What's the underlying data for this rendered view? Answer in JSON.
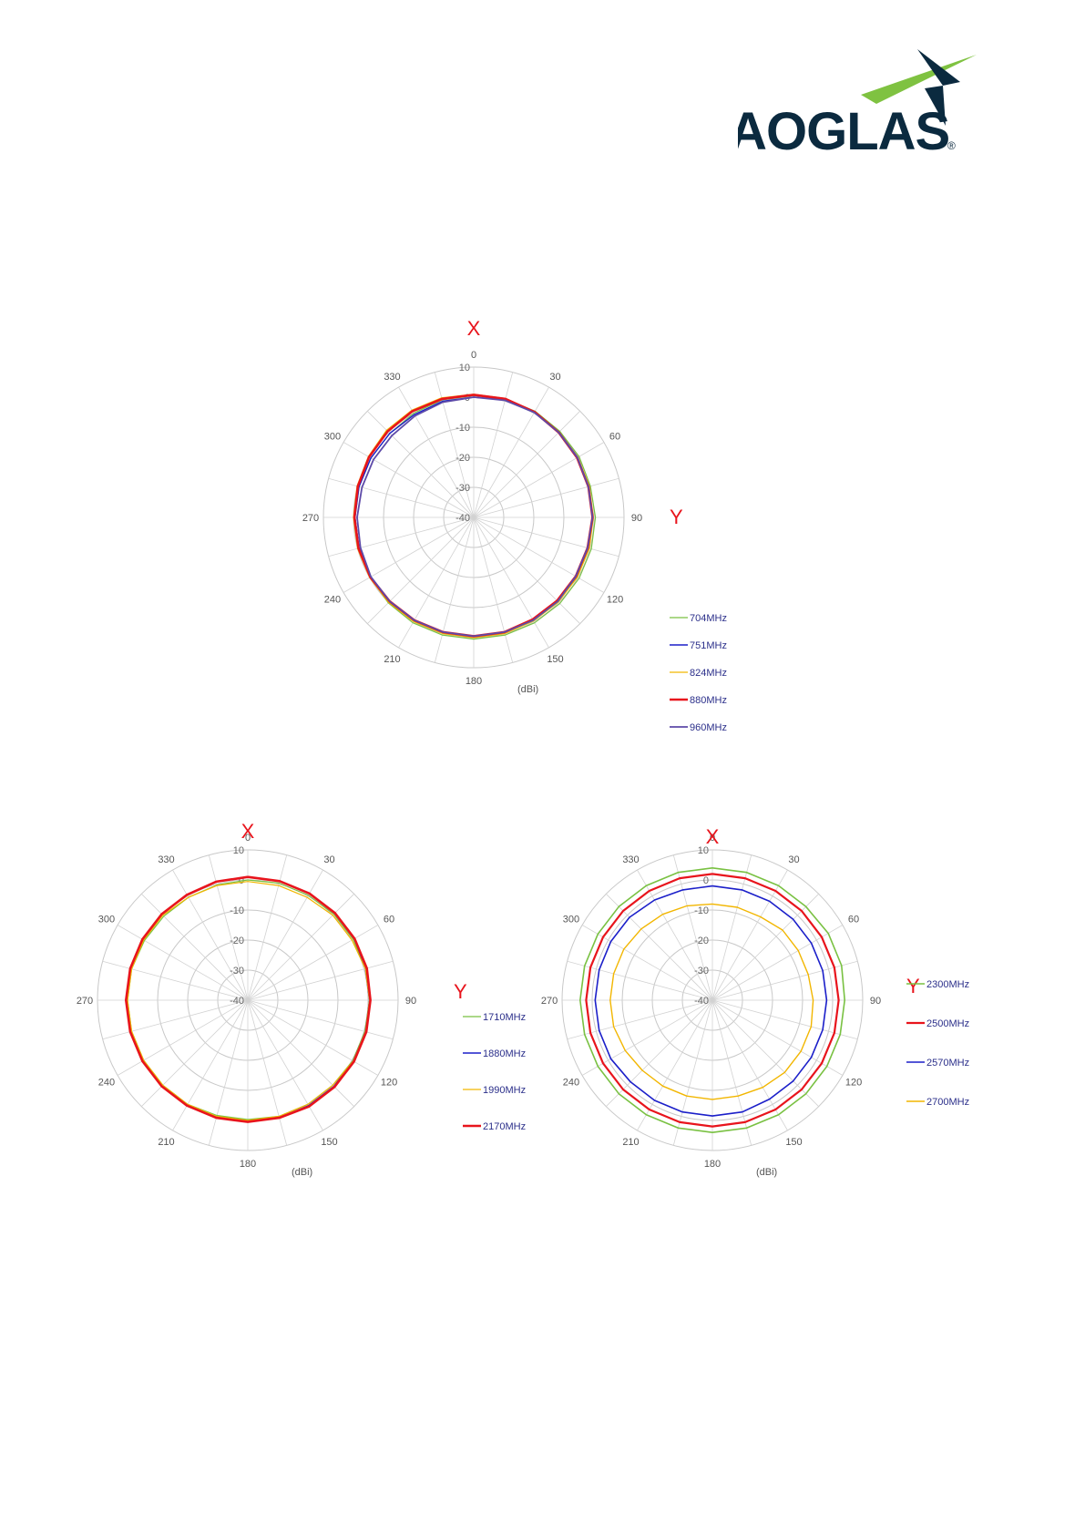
{
  "logo": {
    "text": "TAOGLAS",
    "reg_mark": "®",
    "colors": {
      "text": "#0b2a3f",
      "star_green": "#7fc241",
      "star_dark": "#0b2a3f"
    }
  },
  "chart_data": [
    {
      "type": "polar-line",
      "x_tag": "X",
      "y_tag": "Y",
      "unit": "(dBi)",
      "r_ticks": [
        10,
        0,
        -10,
        -20,
        -30,
        -40
      ],
      "r_min": -40,
      "r_max": 10,
      "angle_labels": [
        "0",
        "30",
        "60",
        "90",
        "120",
        "150",
        "180",
        "210",
        "240",
        "270",
        "300",
        "330"
      ],
      "series": [
        {
          "name": "704MHz",
          "color": "#79c142",
          "width": 1.2,
          "gain": [
            0.5,
            0.8,
            0.8,
            0.5,
            0.5,
            0.2,
            0.5,
            0.5,
            0.5,
            0.5,
            0.5,
            0.5,
            0.5,
            0.5,
            0.5,
            0.2,
            -0.2,
            -0.5,
            -0.5,
            -0.5,
            -0.5,
            -0.5,
            0.0,
            0.5
          ]
        },
        {
          "name": "751MHz",
          "color": "#1b1fc9",
          "width": 1.4,
          "gain": [
            0.0,
            0.5,
            0.5,
            0.0,
            0.0,
            -0.5,
            -0.5,
            -0.5,
            -0.5,
            -0.5,
            -0.5,
            -0.5,
            -0.5,
            -0.5,
            -0.5,
            -0.5,
            -0.5,
            -0.5,
            -0.5,
            -0.5,
            -0.5,
            -0.5,
            -0.5,
            0.0
          ]
        },
        {
          "name": "824MHz",
          "color": "#f2b600",
          "width": 1.2,
          "gain": [
            1.0,
            1.0,
            0.5,
            0.0,
            0.0,
            -0.2,
            -0.2,
            -0.2,
            -0.2,
            -0.2,
            -0.2,
            0.0,
            0.0,
            0.0,
            0.0,
            0.0,
            0.0,
            0.0,
            0.0,
            0.2,
            0.5,
            1.0,
            1.2,
            1.2
          ]
        },
        {
          "name": "880MHz",
          "color": "#e8141c",
          "width": 2.6,
          "gain": [
            0.8,
            0.8,
            0.5,
            0.0,
            -0.3,
            -0.5,
            -0.5,
            -0.8,
            -0.8,
            -0.8,
            -0.8,
            -0.5,
            -0.5,
            -0.5,
            -0.5,
            -0.5,
            -0.3,
            -0.3,
            -0.3,
            -0.1,
            0.2,
            0.5,
            0.8,
            0.8
          ]
        },
        {
          "name": "960MHz",
          "color": "#5d4aa8",
          "width": 1.8,
          "gain": [
            0.0,
            0.3,
            0.3,
            0.0,
            -0.2,
            -0.5,
            -0.5,
            -0.8,
            -0.8,
            -0.5,
            -0.5,
            -0.5,
            -0.5,
            -0.5,
            -0.5,
            -0.5,
            -0.5,
            -1.0,
            -1.2,
            -1.5,
            -1.5,
            -1.5,
            -1.0,
            -0.3
          ]
        }
      ]
    },
    {
      "type": "polar-line",
      "x_tag": "X",
      "y_tag": "Y",
      "unit": "(dBi)",
      "r_ticks": [
        10,
        0,
        -10,
        -20,
        -30,
        -40
      ],
      "r_min": -40,
      "r_max": 10,
      "angle_labels": [
        "0",
        "30",
        "60",
        "90",
        "120",
        "150",
        "180",
        "210",
        "240",
        "270",
        "300",
        "330"
      ],
      "series": [
        {
          "name": "1710MHz",
          "color": "#79c142",
          "width": 1.2,
          "gain": [
            0.0,
            0.3,
            0.3,
            0.5,
            0.5,
            0.5,
            0.5,
            0.3,
            0.3,
            0.0,
            0.0,
            0.0,
            -0.3,
            -0.3,
            0.0,
            0.0,
            0.0,
            0.0,
            0.0,
            0.0,
            -0.3,
            -0.5,
            -0.5,
            -0.3
          ]
        },
        {
          "name": "1880MHz",
          "color": "#1b1fc9",
          "width": 1.4,
          "gain": [
            1.0,
            1.0,
            1.0,
            1.0,
            1.0,
            0.5,
            0.5,
            0.5,
            0.5,
            0.5,
            0.5,
            0.5,
            0.5,
            0.5,
            0.5,
            0.5,
            0.5,
            0.5,
            0.5,
            0.5,
            0.5,
            0.5,
            0.5,
            0.8
          ]
        },
        {
          "name": "1990MHz",
          "color": "#f2b600",
          "width": 1.2,
          "gain": [
            -0.5,
            -0.5,
            -0.5,
            0.0,
            0.0,
            0.5,
            0.5,
            0.5,
            0.5,
            0.0,
            0.0,
            0.0,
            0.0,
            0.0,
            0.0,
            0.0,
            0.0,
            0.0,
            0.0,
            0.0,
            0.0,
            0.0,
            -0.5,
            -0.5
          ]
        },
        {
          "name": "2170MHz",
          "color": "#e8141c",
          "width": 2.6,
          "gain": [
            1.0,
            1.0,
            1.0,
            1.0,
            1.0,
            1.0,
            0.8,
            0.8,
            0.8,
            0.8,
            0.8,
            0.5,
            0.5,
            0.5,
            0.5,
            0.5,
            0.5,
            0.5,
            0.5,
            0.5,
            0.5,
            0.5,
            0.5,
            0.8
          ]
        }
      ]
    },
    {
      "type": "polar-line",
      "x_tag": "X",
      "y_tag": "Y",
      "unit": "(dBi)",
      "r_ticks": [
        10,
        0,
        -10,
        -20,
        -30,
        -40
      ],
      "r_min": -40,
      "r_max": 10,
      "angle_labels": [
        "0",
        "30",
        "60",
        "90",
        "120",
        "150",
        "180",
        "210",
        "240",
        "270",
        "300",
        "330"
      ],
      "series": [
        {
          "name": "2300MHz",
          "color": "#79c142",
          "width": 1.6,
          "gain": [
            4.0,
            4.0,
            4.0,
            4.0,
            4.5,
            4.5,
            4.0,
            4.0,
            4.0,
            4.0,
            4.0,
            4.0,
            4.0,
            4.0,
            4.0,
            4.0,
            4.0,
            4.0,
            4.0,
            4.0,
            4.0,
            4.0,
            4.0,
            4.0
          ]
        },
        {
          "name": "2500MHz",
          "color": "#e8141c",
          "width": 2.2,
          "gain": [
            2.0,
            2.0,
            2.0,
            2.0,
            2.0,
            2.0,
            2.0,
            2.0,
            2.0,
            2.0,
            2.0,
            2.0,
            2.0,
            2.0,
            2.0,
            2.0,
            2.0,
            2.0,
            2.0,
            2.0,
            2.0,
            2.0,
            2.0,
            2.0
          ]
        },
        {
          "name": "2570MHz",
          "color": "#1b1fc9",
          "width": 1.6,
          "gain": [
            -2.0,
            -2.0,
            -2.0,
            -2.0,
            -2.0,
            -2.0,
            -2.0,
            -2.0,
            -2.0,
            -2.0,
            -2.0,
            -1.5,
            -1.5,
            -1.5,
            -1.5,
            -1.5,
            -1.0,
            -1.0,
            -1.0,
            -1.0,
            -1.0,
            -1.0,
            -1.5,
            -2.0
          ]
        },
        {
          "name": "2700MHz",
          "color": "#f2b600",
          "width": 1.4,
          "gain": [
            -8.0,
            -8.0,
            -8.0,
            -7.0,
            -7.0,
            -7.0,
            -6.5,
            -6.0,
            -6.0,
            -6.0,
            -6.5,
            -7.0,
            -7.0,
            -7.0,
            -7.0,
            -7.0,
            -6.5,
            -6.0,
            -6.0,
            -6.0,
            -6.0,
            -6.5,
            -7.0,
            -7.5
          ]
        }
      ]
    }
  ]
}
